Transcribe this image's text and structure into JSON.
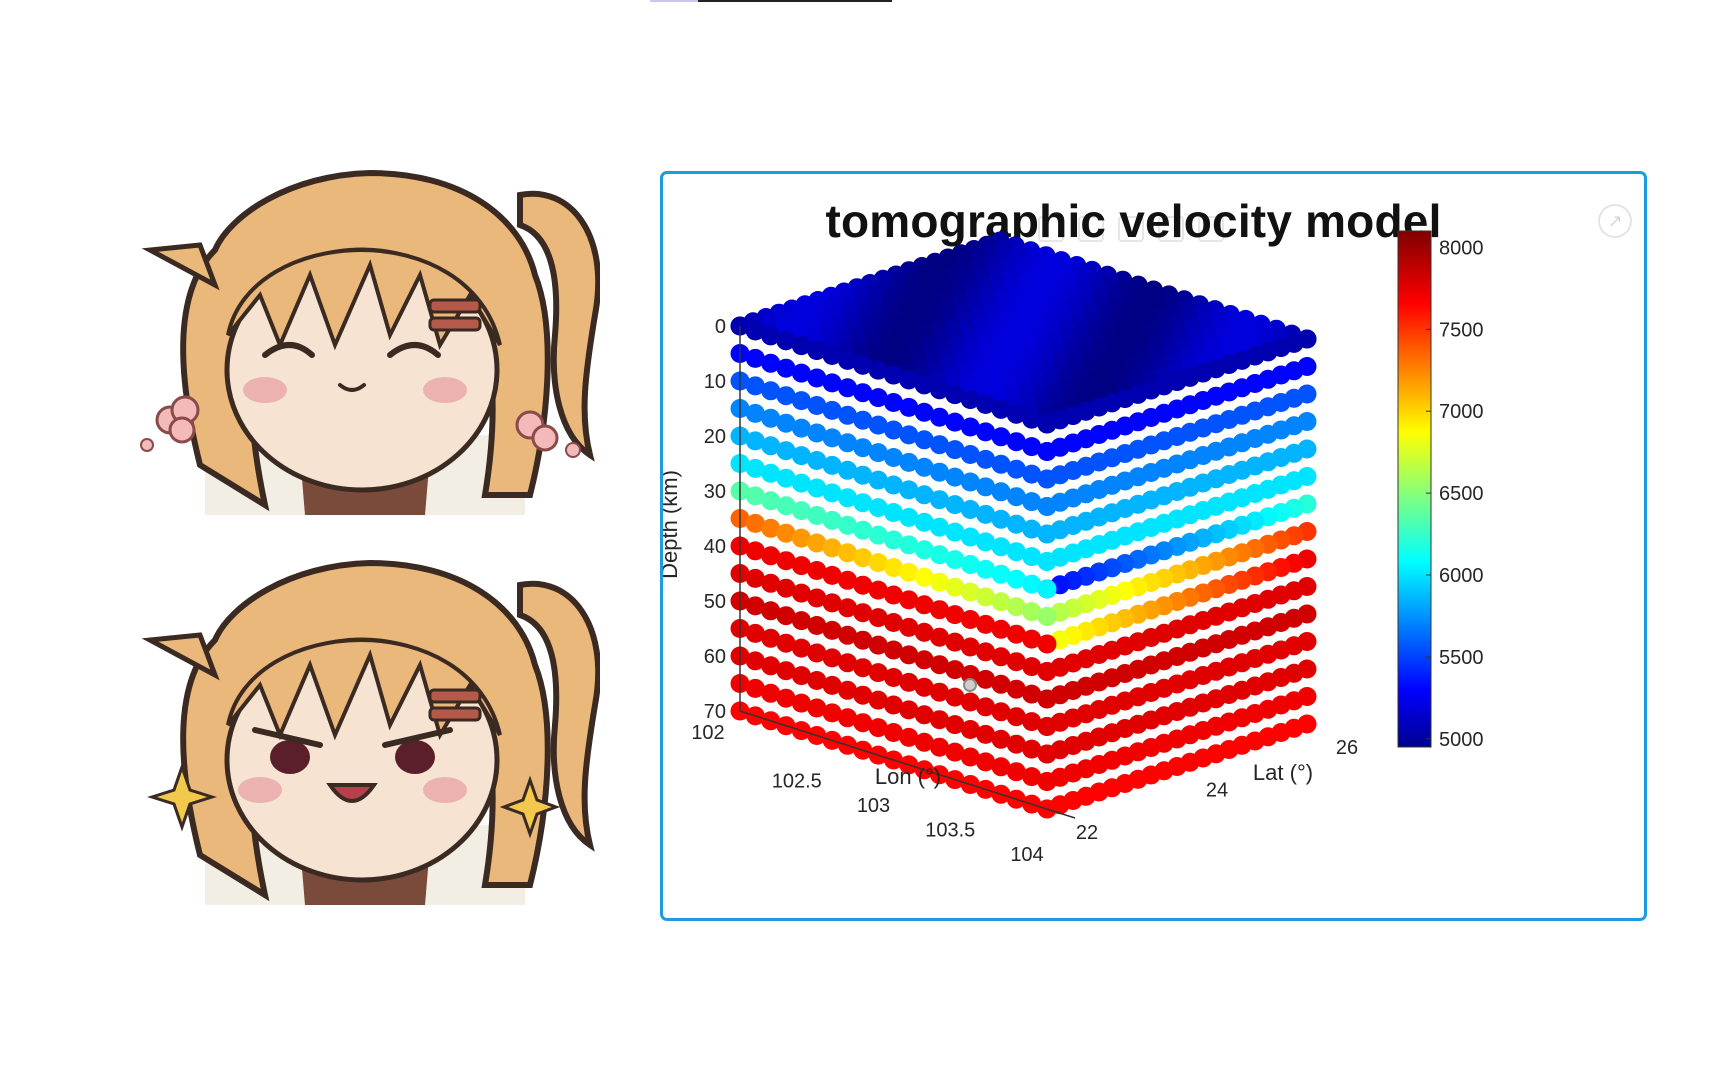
{
  "figure": {
    "title": "tomographic velocity model",
    "expand_icon": "expand-arrow-icon"
  },
  "stickers": [
    {
      "name": "smiling-anime-girl",
      "expression": "happy",
      "decor": "pink-flowers-icon"
    },
    {
      "name": "grinning-anime-girl",
      "expression": "smug",
      "decor": "sparkle-icon"
    }
  ],
  "chart_data": {
    "type": "scatter",
    "subtype": "3d-scatter-cube",
    "title": "tomographic velocity model",
    "xlabel": "Lon (°)",
    "ylabel": "Lat (°)",
    "zlabel": "Depth (km)",
    "x_ticks": [
      "102",
      "102.5",
      "103",
      "103.5",
      "104"
    ],
    "y_ticks": [
      "22",
      "24",
      "26"
    ],
    "z_ticks": [
      "0",
      "10",
      "20",
      "30",
      "40",
      "50",
      "60",
      "70"
    ],
    "xlim": [
      102,
      104
    ],
    "ylim": [
      22,
      26
    ],
    "zlim": [
      0,
      70
    ],
    "z_reversed": true,
    "colormap": "jet",
    "colorbar": {
      "range": [
        4950,
        8100
      ],
      "ticks": [
        "5000",
        "5500",
        "6000",
        "6500",
        "7000",
        "7500",
        "8000"
      ],
      "placement": "right"
    },
    "visible_faces": [
      "top",
      "front (Lat = 22)",
      "side (Lon = 104)"
    ],
    "velocity_by_depth": [
      {
        "depth": 0,
        "value": 5100
      },
      {
        "depth": 5,
        "value": 5350
      },
      {
        "depth": 10,
        "value": 5600
      },
      {
        "depth": 15,
        "value": 5750
      },
      {
        "depth": 20,
        "value": 5900
      },
      {
        "depth": 25,
        "value": 6050
      },
      {
        "depth": 30,
        "value": 6250
      },
      {
        "depth": 35,
        "value": 7550
      },
      {
        "depth": 40,
        "value": 7750
      },
      {
        "depth": 45,
        "value": 7800
      },
      {
        "depth": 50,
        "value": 7850
      },
      {
        "depth": 55,
        "value": 7800
      },
      {
        "depth": 60,
        "value": 7800
      },
      {
        "depth": 65,
        "value": 7750
      },
      {
        "depth": 70,
        "value": 7700
      }
    ],
    "grid": false
  }
}
